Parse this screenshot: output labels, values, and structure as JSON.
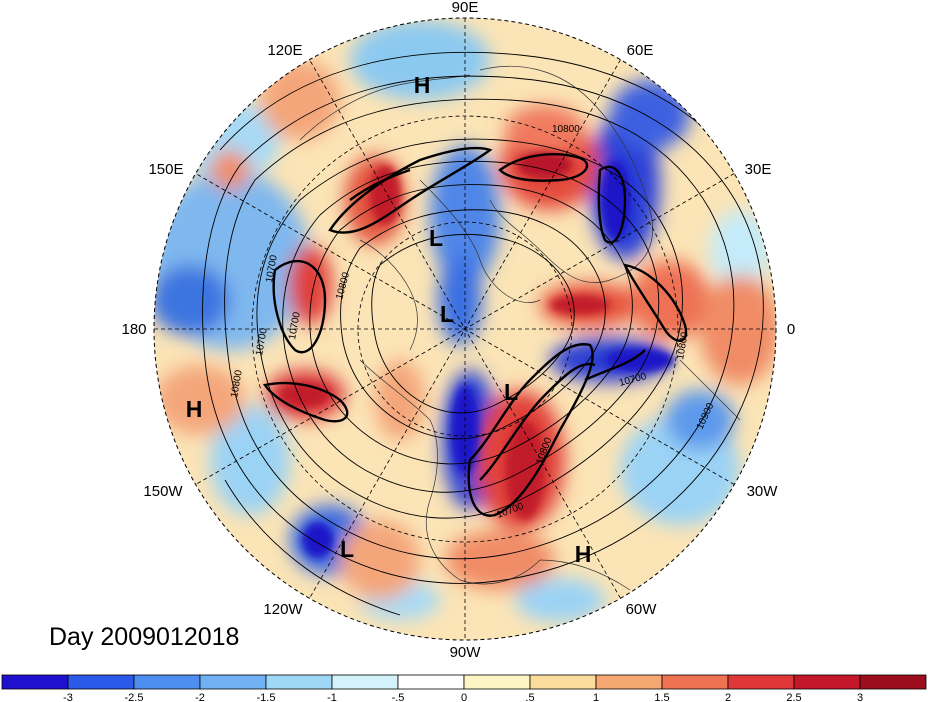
{
  "map": {
    "projection": "north polar stereographic",
    "lon_labels": {
      "lon_90e": "90E",
      "lon_60e": "60E",
      "lon_30e": "30E",
      "lon_0": "0",
      "lon_30w": "30W",
      "lon_60w": "60W",
      "lon_90w": "90W",
      "lon_120w": "120W",
      "lon_150w": "150W",
      "lon_180": "180",
      "lon_150e": "150E",
      "lon_120e": "120E"
    },
    "contour_labels": {
      "c1": "10800",
      "c2": "10700",
      "c3": "10800",
      "c4": "10700",
      "c5": "10700",
      "c6": "10800",
      "c7": "10900",
      "c8": "10700",
      "c9": "10800",
      "c10": "10800",
      "c11": "10700"
    },
    "pressure_centers": {
      "h1": "H",
      "h2": "H",
      "h3": "H",
      "l1": "L",
      "l2": "L",
      "l3": "L",
      "l4": "L"
    },
    "colors": {
      "strong_negative": "#1f2bd6",
      "weak_negative": "#a8e6f7",
      "weak_positive": "#fde5b0",
      "strong_positive": "#d72a2c",
      "contour": "#000000"
    }
  },
  "date_label": "Day 2009012018",
  "colorbar": {
    "ticks": [
      "-3",
      "-2.5",
      "-2",
      "-1.5",
      "-1",
      "-.5",
      "0",
      ".5",
      "1",
      "1.5",
      "2",
      "2.5",
      "3"
    ],
    "colors": [
      "#1f10cf",
      "#2b59e8",
      "#4d8ef0",
      "#6fb1f2",
      "#9fd8f7",
      "#d3f2fb",
      "#ffffff",
      "#fdf6c4",
      "#fbdc9a",
      "#f6a872",
      "#ee7152",
      "#e03838",
      "#c4172a",
      "#9c0d1d"
    ]
  }
}
